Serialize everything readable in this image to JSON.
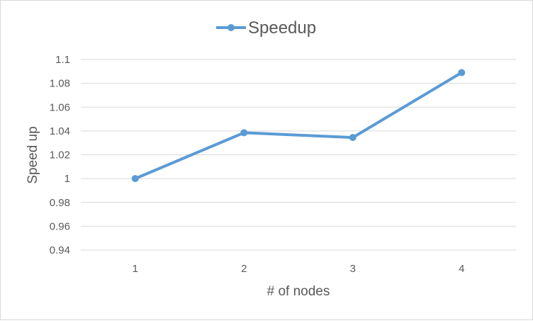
{
  "chart_data": {
    "type": "line",
    "title": "",
    "xlabel": "# of nodes",
    "ylabel": "Speed up",
    "categories": [
      "1",
      "2",
      "3",
      "4"
    ],
    "series": [
      {
        "name": "Speedup",
        "values": [
          1.0,
          1.0385,
          1.0345,
          1.089
        ],
        "color": "#5b9bd5"
      }
    ],
    "ylim": [
      0.94,
      1.1
    ],
    "yticks": [
      "0.94",
      "0.96",
      "0.98",
      "1",
      "1.02",
      "1.04",
      "1.06",
      "1.08",
      "1.1"
    ],
    "grid": true,
    "legend_position": "top"
  }
}
